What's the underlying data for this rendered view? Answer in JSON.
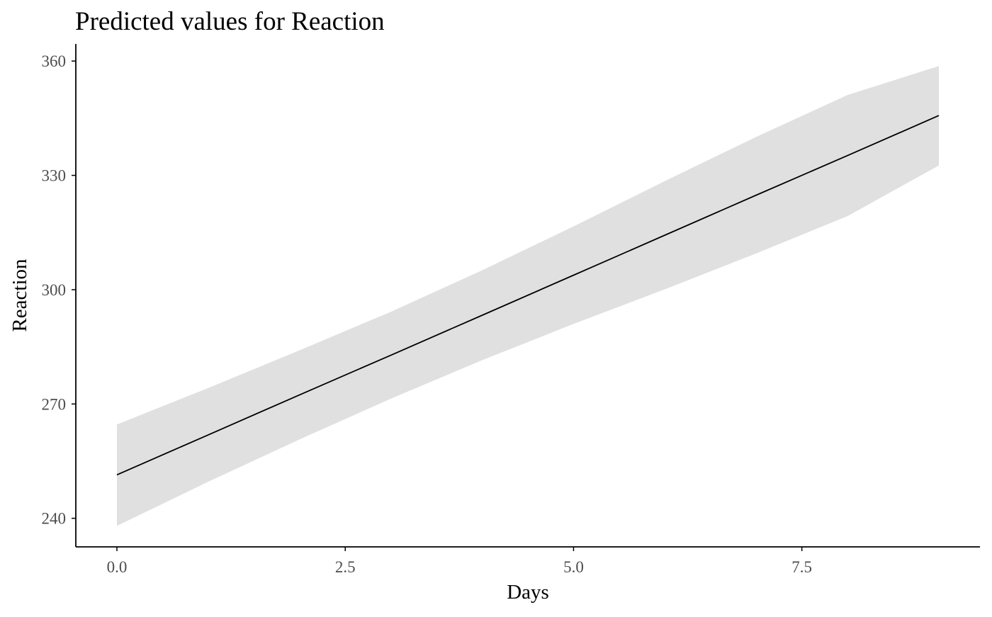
{
  "chart_data": {
    "type": "line",
    "title": "Predicted values for Reaction",
    "xlabel": "Days",
    "ylabel": "Reaction",
    "xlim": [
      -0.45,
      9.45
    ],
    "ylim": [
      232.5,
      364.5
    ],
    "x_ticks": [
      0,
      2.5,
      5,
      7.5
    ],
    "x_tick_labels": [
      "0.0",
      "2.5",
      "5.0",
      "7.5"
    ],
    "y_ticks": [
      240,
      270,
      300,
      330,
      360
    ],
    "y_tick_labels": [
      "240",
      "270",
      "300",
      "330",
      "360"
    ],
    "grid": false,
    "legend": "none",
    "series": [
      {
        "x": [
          0,
          1,
          2,
          3,
          4,
          5,
          6,
          7,
          8,
          9
        ],
        "values": [
          251.4,
          261.9,
          272.4,
          282.8,
          293.3,
          303.8,
          314.3,
          324.8,
          335.2,
          345.7
        ],
        "lower": [
          238.0,
          249.6,
          260.7,
          271.4,
          281.5,
          291.0,
          300.1,
          309.5,
          319.3,
          332.6
        ],
        "upper": [
          264.6,
          274.2,
          284.1,
          294.2,
          305.1,
          316.6,
          328.5,
          340.1,
          351.1,
          358.7
        ]
      }
    ],
    "colors": {
      "line": "#000000",
      "ribbon": "#e0e0e0",
      "axis": "#000000",
      "tick_text": "#4d4d4d"
    }
  }
}
